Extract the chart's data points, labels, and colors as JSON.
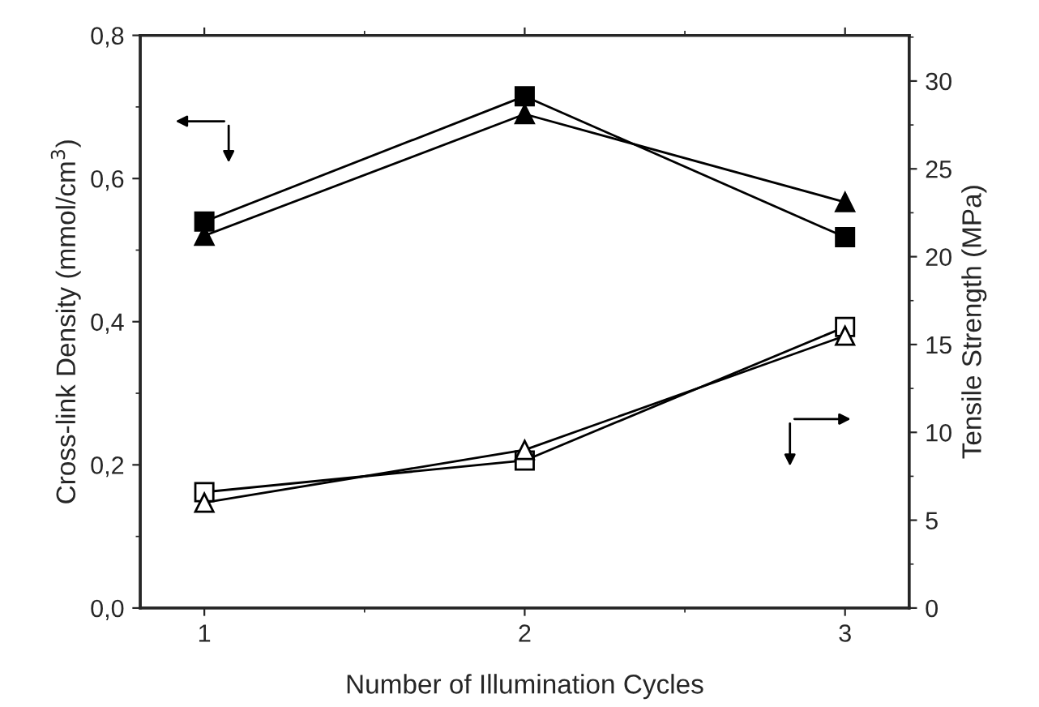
{
  "chart_data": {
    "type": "line",
    "xlabel": "Number of Illumination Cycles",
    "ylabel": "Cross-link Density (mmol/cm$^{3}$)",
    "y2label": "Tensile Strength (MPa)",
    "x": [
      1,
      2,
      3
    ],
    "xlim": [
      0.8,
      3.2
    ],
    "xticks": [
      1,
      2,
      3
    ],
    "ylim": [
      0,
      0.8
    ],
    "yticks": [
      {
        "value": 0,
        "label": "0,0"
      },
      {
        "value": 0.2,
        "label": "0,2"
      },
      {
        "value": 0.4,
        "label": "0,4"
      },
      {
        "value": 0.6,
        "label": "0,6"
      },
      {
        "value": 0.8,
        "label": "0,8"
      }
    ],
    "y2lim": [
      0,
      32.6
    ],
    "y2ticks": [
      0,
      5,
      10,
      15,
      20,
      25,
      30
    ],
    "grid": false,
    "legend": false,
    "line_style": "solid",
    "series": [
      {
        "color": "#000000",
        "marker": "square",
        "values": [
          0.54,
          0.715,
          0.518
        ]
      },
      {
        "color": "#000000",
        "marker": "triangle",
        "values": [
          0.52,
          0.69,
          0.567
        ]
      },
      {
        "color": "#000000",
        "marker": "square",
        "axis": "y2",
        "values": [
          6.6,
          8.4,
          16.0
        ]
      },
      {
        "color": "#000000",
        "marker": "triangle",
        "axis": "y2",
        "values": [
          6.0,
          9.0,
          15.5
        ]
      }
    ]
  }
}
